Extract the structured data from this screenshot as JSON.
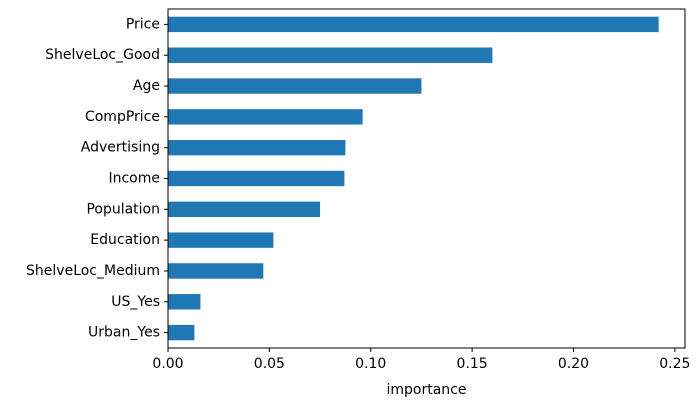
{
  "chart_data": {
    "type": "bar",
    "orientation": "horizontal",
    "categories": [
      "Price",
      "ShelveLoc_Good",
      "Age",
      "CompPrice",
      "Advertising",
      "Income",
      "Population",
      "Education",
      "ShelveLoc_Medium",
      "US_Yes",
      "Urban_Yes"
    ],
    "values": [
      0.242,
      0.16,
      0.125,
      0.096,
      0.0875,
      0.087,
      0.075,
      0.052,
      0.047,
      0.016,
      0.013
    ],
    "xlabel": "importance",
    "ylabel": "",
    "title": "",
    "xlim": [
      0,
      0.255
    ],
    "xticks": [
      0.0,
      0.05,
      0.1,
      0.15,
      0.2,
      0.25
    ],
    "xtick_labels": [
      "0.00",
      "0.05",
      "0.10",
      "0.15",
      "0.20",
      "0.25"
    ],
    "bar_color": "#1f77b4",
    "grid": false,
    "legend": "none"
  }
}
